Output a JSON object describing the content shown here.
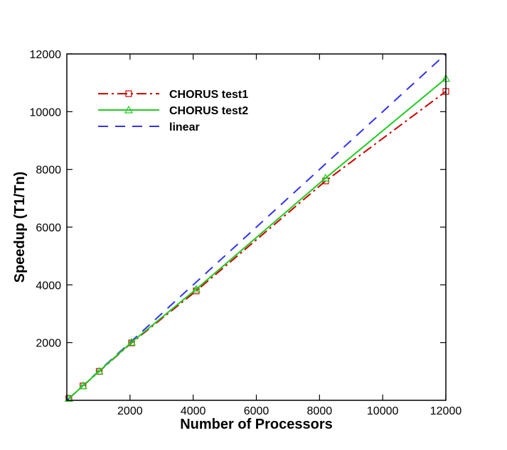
{
  "chart_data": {
    "type": "line",
    "title": "",
    "xlabel": "Number of Processors",
    "ylabel": "Speedup (T1/Tn)",
    "xlim": [
      0,
      12000
    ],
    "ylim": [
      0,
      12000
    ],
    "xticks": [
      2000,
      4000,
      6000,
      8000,
      10000,
      12000
    ],
    "yticks": [
      2000,
      4000,
      6000,
      8000,
      10000,
      12000
    ],
    "xtick_labels": [
      "2000",
      "4000",
      "6000",
      "8000",
      "10000",
      "12000"
    ],
    "ytick_labels": [
      "2000",
      "4000",
      "6000",
      "8000",
      "10000",
      "12000"
    ],
    "grid": false,
    "legend_position": "top-left",
    "series": [
      {
        "name": "CHORUS test1",
        "color": "#cc0000",
        "line_style": "dash-dot",
        "marker": "square",
        "x": [
          64,
          512,
          1024,
          2048,
          4096,
          8192,
          12000
        ],
        "y": [
          64,
          500,
          1000,
          1990,
          3790,
          7600,
          10700
        ]
      },
      {
        "name": "CHORUS test2",
        "color": "#22cc22",
        "line_style": "solid",
        "marker": "triangle",
        "x": [
          64,
          512,
          1024,
          2048,
          4096,
          8192,
          12000
        ],
        "y": [
          64,
          505,
          1010,
          2010,
          3850,
          7700,
          11150
        ]
      },
      {
        "name": "linear",
        "color": "#3333ee",
        "line_style": "dash",
        "marker": "none",
        "x": [
          0,
          12000
        ],
        "y": [
          0,
          12000
        ]
      }
    ]
  }
}
